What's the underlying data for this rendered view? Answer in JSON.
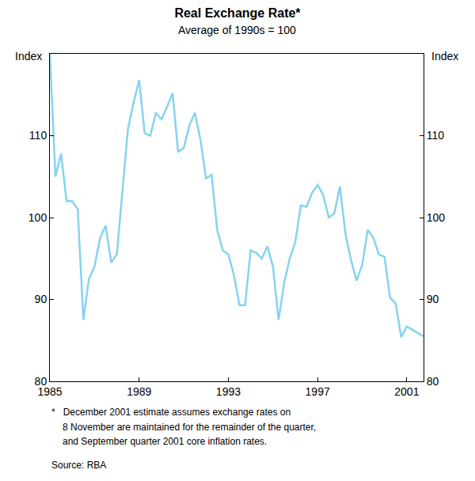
{
  "chart_data": {
    "type": "line",
    "title": "Real Exchange Rate*",
    "subtitle": "Average of 1990s = 100",
    "y_label": "Index",
    "footnote": [
      "*   December 2001 estimate assumes exchange rates on",
      "8 November are maintained for the remainder of the quarter,",
      "and September quarter 2001 core inflation rates."
    ],
    "source": "Source: RBA",
    "color": "#86d3f0",
    "grid": false,
    "x": [
      1985.0,
      1985.25,
      1985.5,
      1985.75,
      1986.0,
      1986.25,
      1986.5,
      1986.75,
      1987.0,
      1987.25,
      1987.5,
      1987.75,
      1988.0,
      1988.25,
      1988.5,
      1988.75,
      1989.0,
      1989.25,
      1989.5,
      1989.75,
      1990.0,
      1990.25,
      1990.5,
      1990.75,
      1991.0,
      1991.25,
      1991.5,
      1991.75,
      1992.0,
      1992.25,
      1992.5,
      1992.75,
      1993.0,
      1993.25,
      1993.5,
      1993.75,
      1994.0,
      1994.25,
      1994.5,
      1994.75,
      1995.0,
      1995.25,
      1995.5,
      1995.75,
      1996.0,
      1996.25,
      1996.5,
      1996.75,
      1997.0,
      1997.25,
      1997.5,
      1997.75,
      1998.0,
      1998.25,
      1998.5,
      1998.75,
      1999.0,
      1999.25,
      1999.5,
      1999.75,
      2000.0,
      2000.25,
      2000.5,
      2000.75,
      2001.0,
      2001.25,
      2001.5,
      2001.75
    ],
    "values": [
      120,
      105,
      107.8,
      102,
      102,
      101,
      87.5,
      92.5,
      94,
      97.5,
      99,
      94.5,
      95.5,
      103,
      110.8,
      114,
      116.8,
      110.3,
      110,
      112.8,
      112,
      113.5,
      115.2,
      108,
      108.5,
      111.2,
      112.8,
      109.5,
      104.8,
      105.2,
      98.5,
      96,
      95.5,
      93,
      89.3,
      89.3,
      96,
      95.7,
      95,
      96.5,
      94,
      87.5,
      92,
      95,
      97,
      101.5,
      101.3,
      103,
      104,
      102.8,
      100,
      100.5,
      103.8,
      98,
      94.8,
      92.3,
      94.2,
      98.5,
      97.5,
      95.5,
      95.2,
      90.2,
      89.5,
      85.4,
      86.7,
      86.3,
      85.9,
      85.5
    ],
    "xlim": [
      1985,
      2001.75
    ],
    "xticks": [
      1985,
      1989,
      1993,
      1997,
      2001
    ],
    "ylim": [
      80,
      120
    ],
    "yticks": [
      80,
      90,
      100,
      110
    ]
  }
}
